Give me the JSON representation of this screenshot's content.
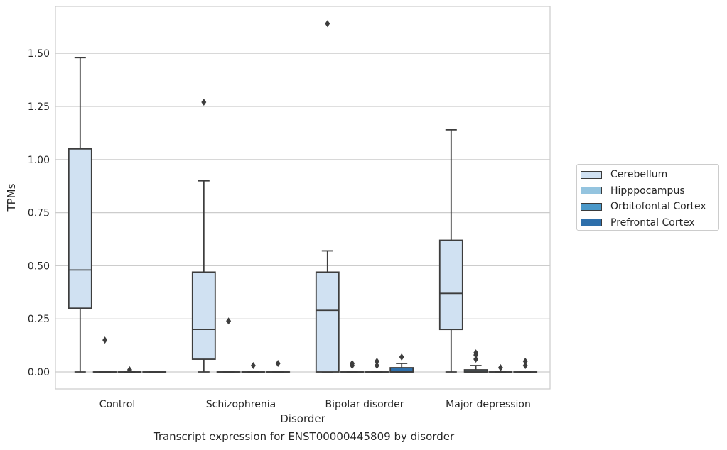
{
  "chart_data": {
    "type": "box",
    "caption": "Transcript expression for ENST00000445809 by disorder",
    "xlabel": "Disorder",
    "ylabel": "TPMs",
    "ylim": [
      -0.08,
      1.74
    ],
    "yticks": [
      "0.00",
      "0.25",
      "0.50",
      "0.75",
      "1.00",
      "1.25",
      "1.50"
    ],
    "ytick_values": [
      0,
      0.25,
      0.5,
      0.75,
      1.0,
      1.25,
      1.5
    ],
    "grid": "horizontal",
    "legend_position": "right",
    "categories": [
      "Control",
      "Schizophrenia",
      "Bipolar disorder",
      "Major depression"
    ],
    "series": [
      {
        "name": "Cerebellum",
        "color": "#d0e1f2",
        "boxes": [
          {
            "whisker_low": 0,
            "q1": 0.3,
            "median": 0.48,
            "q3": 1.05,
            "whisker_high": 1.48,
            "outliers": []
          },
          {
            "whisker_low": 0,
            "q1": 0.06,
            "median": 0.2,
            "q3": 0.47,
            "whisker_high": 0.9,
            "outliers": [
              1.27
            ]
          },
          {
            "whisker_low": 0,
            "q1": 0,
            "median": 0.29,
            "q3": 0.47,
            "whisker_high": 0.57,
            "outliers": [
              1.64
            ]
          },
          {
            "whisker_low": 0,
            "q1": 0.2,
            "median": 0.37,
            "q3": 0.62,
            "whisker_high": 1.14,
            "outliers": []
          }
        ]
      },
      {
        "name": "Hipppocampus",
        "color": "#94c4df",
        "boxes": [
          {
            "whisker_low": 0,
            "q1": 0,
            "median": 0,
            "q3": 0,
            "whisker_high": 0,
            "outliers": [
              0.15
            ]
          },
          {
            "whisker_low": 0,
            "q1": 0,
            "median": 0,
            "q3": 0,
            "whisker_high": 0,
            "outliers": [
              0.24
            ]
          },
          {
            "whisker_low": 0,
            "q1": 0,
            "median": 0,
            "q3": 0,
            "whisker_high": 0,
            "outliers": [
              0.03,
              0.04
            ]
          },
          {
            "whisker_low": 0,
            "q1": 0,
            "median": 0,
            "q3": 0.01,
            "whisker_high": 0.03,
            "outliers": [
              0.06,
              0.08,
              0.09
            ]
          }
        ]
      },
      {
        "name": "Orbitofontal Cortex",
        "color": "#4a98c9",
        "boxes": [
          {
            "whisker_low": 0,
            "q1": 0,
            "median": 0,
            "q3": 0,
            "whisker_high": 0,
            "outliers": [
              0.01
            ]
          },
          {
            "whisker_low": 0,
            "q1": 0,
            "median": 0,
            "q3": 0,
            "whisker_high": 0,
            "outliers": [
              0.03
            ]
          },
          {
            "whisker_low": 0,
            "q1": 0,
            "median": 0,
            "q3": 0,
            "whisker_high": 0,
            "outliers": [
              0.03,
              0.05
            ]
          },
          {
            "whisker_low": 0,
            "q1": 0,
            "median": 0,
            "q3": 0,
            "whisker_high": 0,
            "outliers": [
              0.02
            ]
          }
        ]
      },
      {
        "name": "Prefrontal Cortex",
        "color": "#2e6fab",
        "boxes": [
          {
            "whisker_low": 0,
            "q1": 0,
            "median": 0,
            "q3": 0,
            "whisker_high": 0,
            "outliers": []
          },
          {
            "whisker_low": 0,
            "q1": 0,
            "median": 0,
            "q3": 0,
            "whisker_high": 0,
            "outliers": [
              0.04
            ]
          },
          {
            "whisker_low": 0,
            "q1": 0,
            "median": 0,
            "q3": 0.02,
            "whisker_high": 0.04,
            "outliers": [
              0.07
            ]
          },
          {
            "whisker_low": 0,
            "q1": 0,
            "median": 0,
            "q3": 0,
            "whisker_high": 0,
            "outliers": [
              0.03,
              0.05
            ]
          }
        ]
      }
    ]
  }
}
